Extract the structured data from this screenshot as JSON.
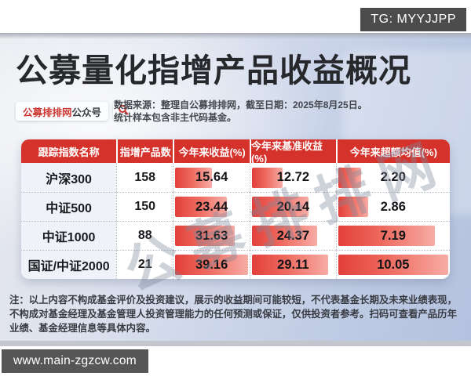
{
  "overlay": {
    "tg_label": "TG: MYYJJPP",
    "site_label": "www.main-zgzcw.com"
  },
  "header": {
    "title": "公募量化指增产品收益概况",
    "badge": {
      "brand": "公募排排网",
      "suffix": "公众号"
    },
    "source_note": "数据来源：整理自公募排排网，截至日期：2025年8月25日。统计样本包含非主代码基金。"
  },
  "chart_data": {
    "type": "table",
    "title": "公募量化指增产品收益概况",
    "columns": [
      "跟踪指数名称",
      "指增产品数",
      "今年来收益(%)",
      "今年来基准收益(%)",
      "今年来超额均值(%)"
    ],
    "rows": [
      {
        "index_name": "沪深300",
        "product_count": "158",
        "ytd_return": "15.64",
        "ytd_benchmark": "12.72",
        "ytd_excess": "2.20",
        "bar_pct": [
          52,
          40,
          23
        ]
      },
      {
        "index_name": "中证500",
        "product_count": "150",
        "ytd_return": "23.44",
        "ytd_benchmark": "20.14",
        "ytd_excess": "2.86",
        "bar_pct": [
          72,
          70,
          29
        ]
      },
      {
        "index_name": "中证1000",
        "product_count": "88",
        "ytd_return": "31.63",
        "ytd_benchmark": "24.37",
        "ytd_excess": "7.19",
        "bar_pct": [
          82,
          80,
          88
        ]
      },
      {
        "index_name": "国证/中证2000",
        "product_count": "21",
        "ytd_return": "39.16",
        "ytd_benchmark": "29.11",
        "ytd_excess": "10.05",
        "bar_pct": [
          100,
          93,
          100
        ]
      }
    ],
    "bar_color_start": "#e2403a",
    "bar_color_end": "#f7aca5",
    "header_color": "#d6322c"
  },
  "footnote": {
    "prefix": "注：",
    "text": "以上内容不构成基金评价及投资建议，展示的收益期间可能较短，不代表基金长期及未来业绩表现，不构成对基金经理及基金管理人投资管理能力的任何预测或保证，仅供投资者参考。扫码可查看产品历年业绩、基金经理信息等具体内容。"
  },
  "watermark": "公募排排网"
}
